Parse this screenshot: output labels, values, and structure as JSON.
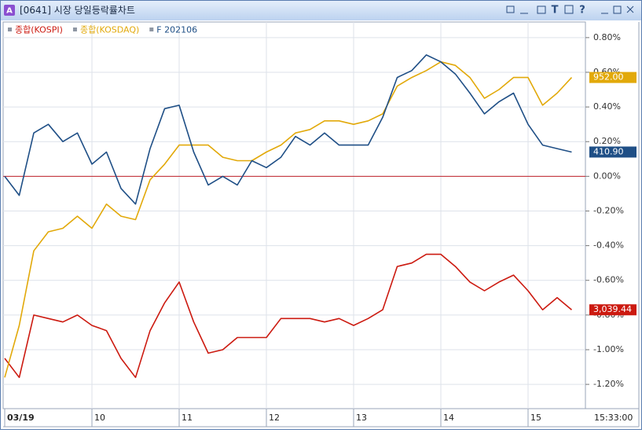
{
  "window": {
    "icon": "A",
    "title": "[0641] 시장 당일등락률차트",
    "toolbar_text": [
      "T",
      "?"
    ]
  },
  "chart_data": {
    "type": "line",
    "x": [
      540,
      550,
      560,
      570,
      580,
      590,
      600,
      610,
      620,
      630,
      640,
      650,
      660,
      670,
      680,
      690,
      700,
      710,
      720,
      730,
      740,
      750,
      760,
      770,
      780,
      790,
      800,
      810,
      820,
      830,
      840,
      850,
      860,
      870,
      880,
      890,
      900,
      910,
      920,
      930
    ],
    "xlim": [
      540,
      940
    ],
    "xticks": [
      {
        "value": 540,
        "label": "03/19"
      },
      {
        "value": 600,
        "label": "10"
      },
      {
        "value": 660,
        "label": "11"
      },
      {
        "value": 720,
        "label": "12"
      },
      {
        "value": 780,
        "label": "13"
      },
      {
        "value": 840,
        "label": "14"
      },
      {
        "value": 900,
        "label": "15"
      }
    ],
    "time_label": "15:33:00",
    "ylim": [
      -1.34,
      0.89
    ],
    "yticks": [
      {
        "value": 0.8,
        "label": "0.80%"
      },
      {
        "value": 0.6,
        "label": "0.60%"
      },
      {
        "value": 0.4,
        "label": "0.40%"
      },
      {
        "value": 0.2,
        "label": "0.20%"
      },
      {
        "value": 0,
        "label": "0.00%"
      },
      {
        "value": -0.2,
        "label": "-0.20%"
      },
      {
        "value": -0.4,
        "label": "-0.40%"
      },
      {
        "value": -0.6,
        "label": "-0.60%"
      },
      {
        "value": -0.8,
        "label": "-0.80%"
      },
      {
        "value": -1,
        "label": "-1.00%"
      },
      {
        "value": -1.2,
        "label": "-1.20%"
      }
    ],
    "grid": true,
    "hline": 0,
    "hline_color": "#c0202a",
    "series": [
      {
        "name": "종합(KOSPI)",
        "color": "#cc1a10",
        "last_label": "3,039.44",
        "values": [
          -1.05,
          -1.16,
          -0.8,
          -0.82,
          -0.84,
          -0.8,
          -0.86,
          -0.89,
          -1.05,
          -1.16,
          -0.89,
          -0.73,
          -0.61,
          -0.84,
          -1.02,
          -1.0,
          -0.93,
          -0.93,
          -0.93,
          -0.82,
          -0.82,
          -0.82,
          -0.84,
          -0.82,
          -0.86,
          -0.82,
          -0.77,
          -0.52,
          -0.5,
          -0.45,
          -0.45,
          -0.52,
          -0.61,
          -0.66,
          -0.61,
          -0.57,
          -0.66,
          -0.77,
          -0.7,
          -0.77
        ]
      },
      {
        "name": "종합(KOSDAQ)",
        "color": "#e2a90a",
        "last_label": "952.00",
        "values": [
          -1.16,
          -0.86,
          -0.43,
          -0.32,
          -0.3,
          -0.23,
          -0.3,
          -0.16,
          -0.23,
          -0.25,
          -0.02,
          0.07,
          0.18,
          0.18,
          0.18,
          0.11,
          0.09,
          0.09,
          0.14,
          0.18,
          0.25,
          0.27,
          0.32,
          0.32,
          0.3,
          0.32,
          0.36,
          0.52,
          0.57,
          0.61,
          0.66,
          0.64,
          0.57,
          0.45,
          0.5,
          0.57,
          0.57,
          0.41,
          0.48,
          0.57
        ]
      },
      {
        "name": "F 202106",
        "color": "#1f4f86",
        "last_label": "410.90",
        "values": [
          0.0,
          -0.11,
          0.25,
          0.3,
          0.2,
          0.25,
          0.07,
          0.14,
          -0.07,
          -0.16,
          0.16,
          0.39,
          0.41,
          0.14,
          -0.05,
          0.0,
          -0.05,
          0.09,
          0.05,
          0.11,
          0.23,
          0.18,
          0.25,
          0.18,
          0.18,
          0.18,
          0.34,
          0.57,
          0.61,
          0.7,
          0.66,
          0.59,
          0.48,
          0.36,
          0.43,
          0.48,
          0.3,
          0.18,
          0.16,
          0.14
        ]
      }
    ]
  }
}
